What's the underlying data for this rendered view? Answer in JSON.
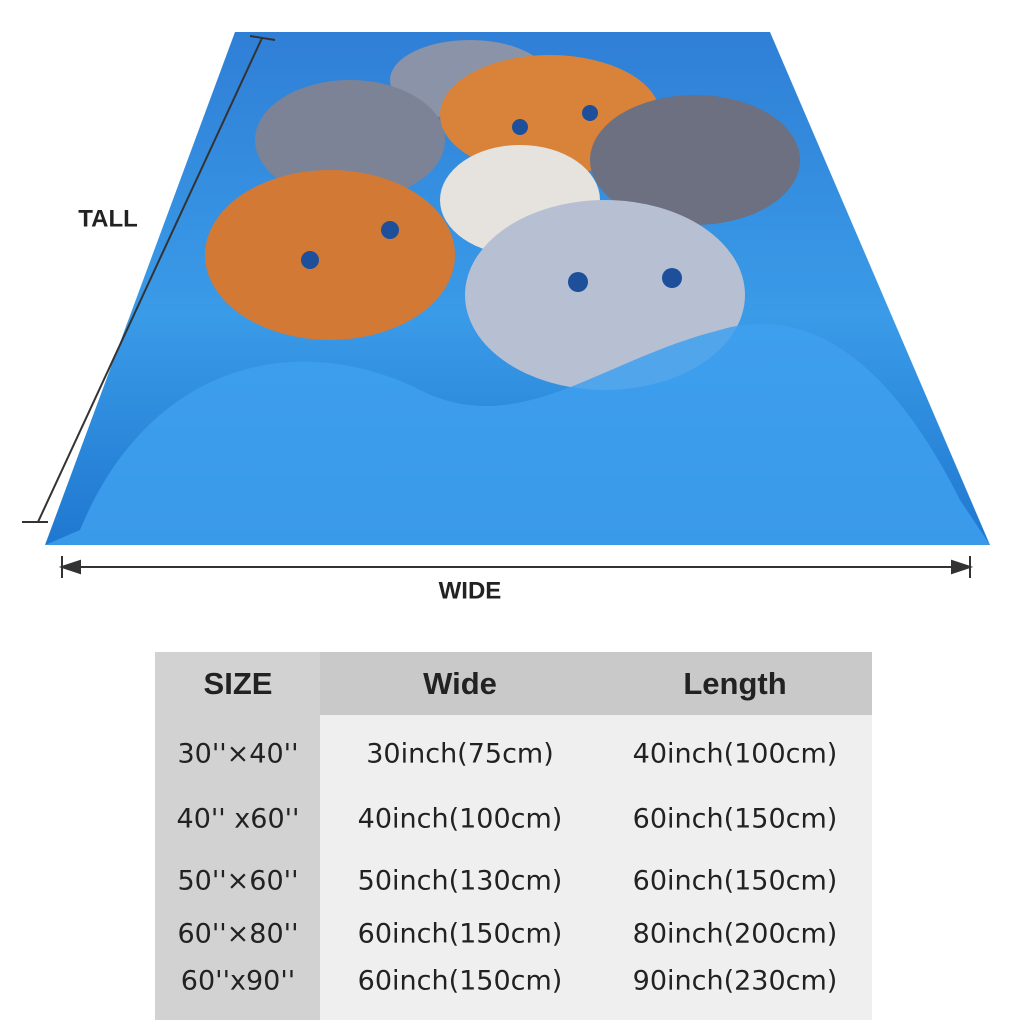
{
  "dimension_labels": {
    "tall": "TALL",
    "wide": "WIDE"
  },
  "table": {
    "header": [
      "SIZE",
      "Wide",
      "Length"
    ],
    "rows": [
      [
        "30''×40''",
        "30inch(75cm)",
        "40inch(100cm)"
      ],
      [
        "40'' x60''",
        "40inch(100cm)",
        "60inch(150cm)"
      ],
      [
        "50''×60''",
        "50inch(130cm)",
        "60inch(150cm)"
      ],
      [
        "60''×80''",
        "60inch(150cm)",
        "80inch(200cm)"
      ],
      [
        "60''x90''",
        "60inch(150cm)",
        "90inch(230cm)"
      ]
    ]
  }
}
